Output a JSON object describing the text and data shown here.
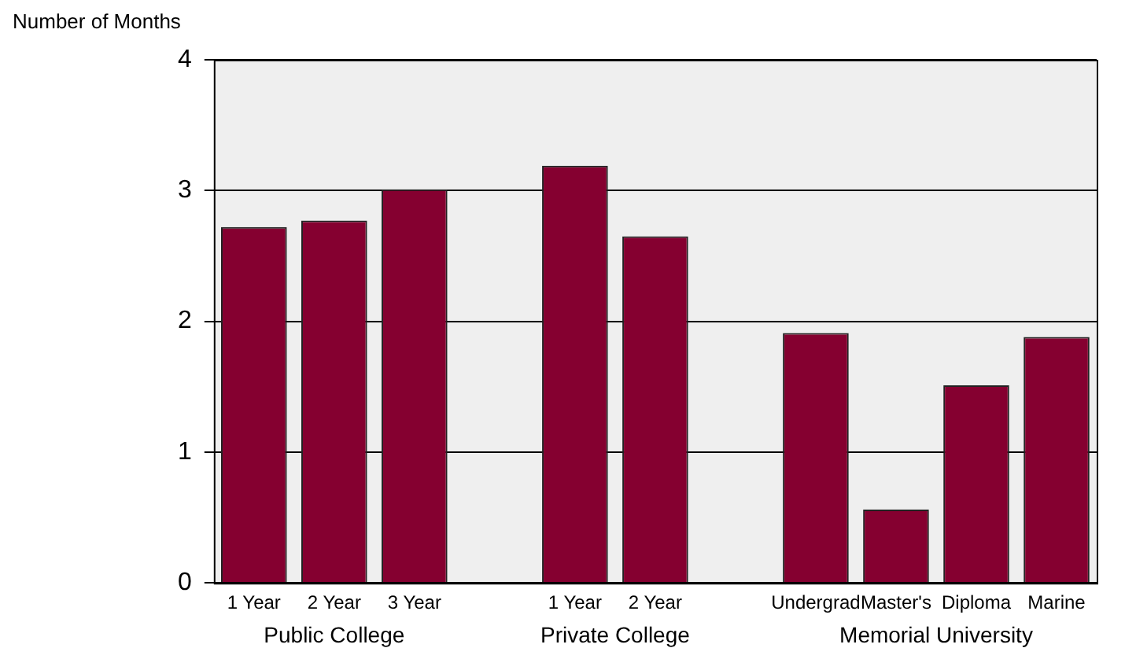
{
  "chart_data": {
    "type": "bar",
    "ylabel": "Number of Months",
    "categories": [
      "1 Year",
      "2 Year",
      "3 Year",
      null,
      "1 Year",
      "2 Year",
      null,
      "Undergrad",
      "Master's",
      "Diploma",
      "Marine"
    ],
    "values": [
      2.72,
      2.77,
      3.01,
      null,
      3.19,
      2.65,
      null,
      1.91,
      0.56,
      1.51,
      1.88
    ],
    "color": "#850030",
    "ylim": [
      0,
      4
    ],
    "yticks": [
      0,
      1,
      2,
      3,
      4
    ],
    "grid": "y",
    "annotations": [
      "Public College",
      "Private College",
      "Memorial University"
    ]
  }
}
